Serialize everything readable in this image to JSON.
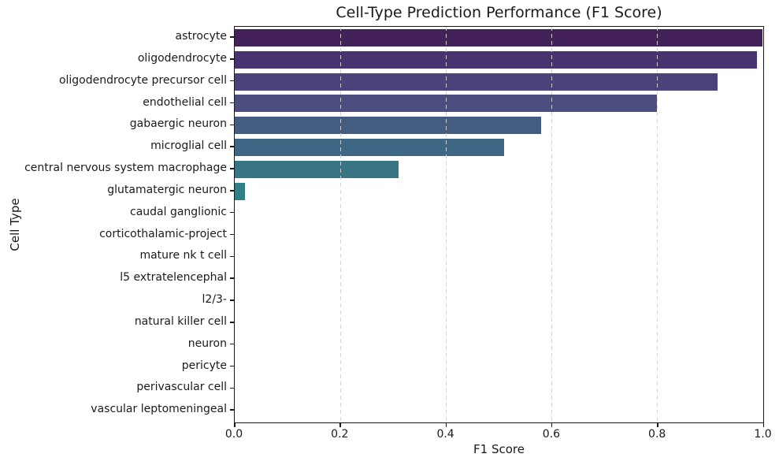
{
  "chart_data": {
    "type": "bar",
    "orientation": "horizontal",
    "title": "Cell-Type Prediction Performance (F1 Score)",
    "xlabel": "F1 Score",
    "ylabel": "Cell Type",
    "xlim": [
      0.0,
      1.0
    ],
    "xtick_values": [
      0.0,
      0.2,
      0.4,
      0.6,
      0.8,
      1.0
    ],
    "xtick_labels": [
      "0.0",
      "0.2",
      "0.4",
      "0.6",
      "0.8",
      "1.0"
    ],
    "grid": {
      "axis": "x",
      "style": "dashed",
      "color": "#d2d2d2",
      "on": true
    },
    "legend": "none",
    "categories": [
      "astrocyte",
      "oligodendrocyte",
      "oligodendrocyte precursor cell",
      "endothelial cell",
      "gabaergic neuron",
      "microglial cell",
      "central nervous system macrophage",
      "glutamatergic neuron",
      "caudal ganglionic",
      "corticothalamic-project",
      "mature nk t cell",
      "l5 extratelencephal",
      "l2/3-",
      "natural killer cell",
      "neuron",
      "pericyte",
      "perivascular cell",
      "vascular leptomeningeal"
    ],
    "values": [
      1.0,
      0.99,
      0.915,
      0.8,
      0.58,
      0.51,
      0.31,
      0.02,
      0,
      0,
      0,
      0,
      0,
      0,
      0,
      0,
      0,
      0
    ],
    "bar_colors": [
      "#432159",
      "#473370",
      "#4a4278",
      "#4b4e7e",
      "#455c81",
      "#3d6784",
      "#387585",
      "#318086",
      "#2b8a87",
      "#279489",
      "#259e86",
      "#2aa880",
      "#3bb178",
      "#52ba6c",
      "#6ec25e",
      "#8eca4e",
      "#b0d03c",
      "#d4d92e"
    ],
    "spine_color": "#1a1a1a",
    "text_color": "#1a1a1a",
    "background_color": "#ffffff"
  }
}
